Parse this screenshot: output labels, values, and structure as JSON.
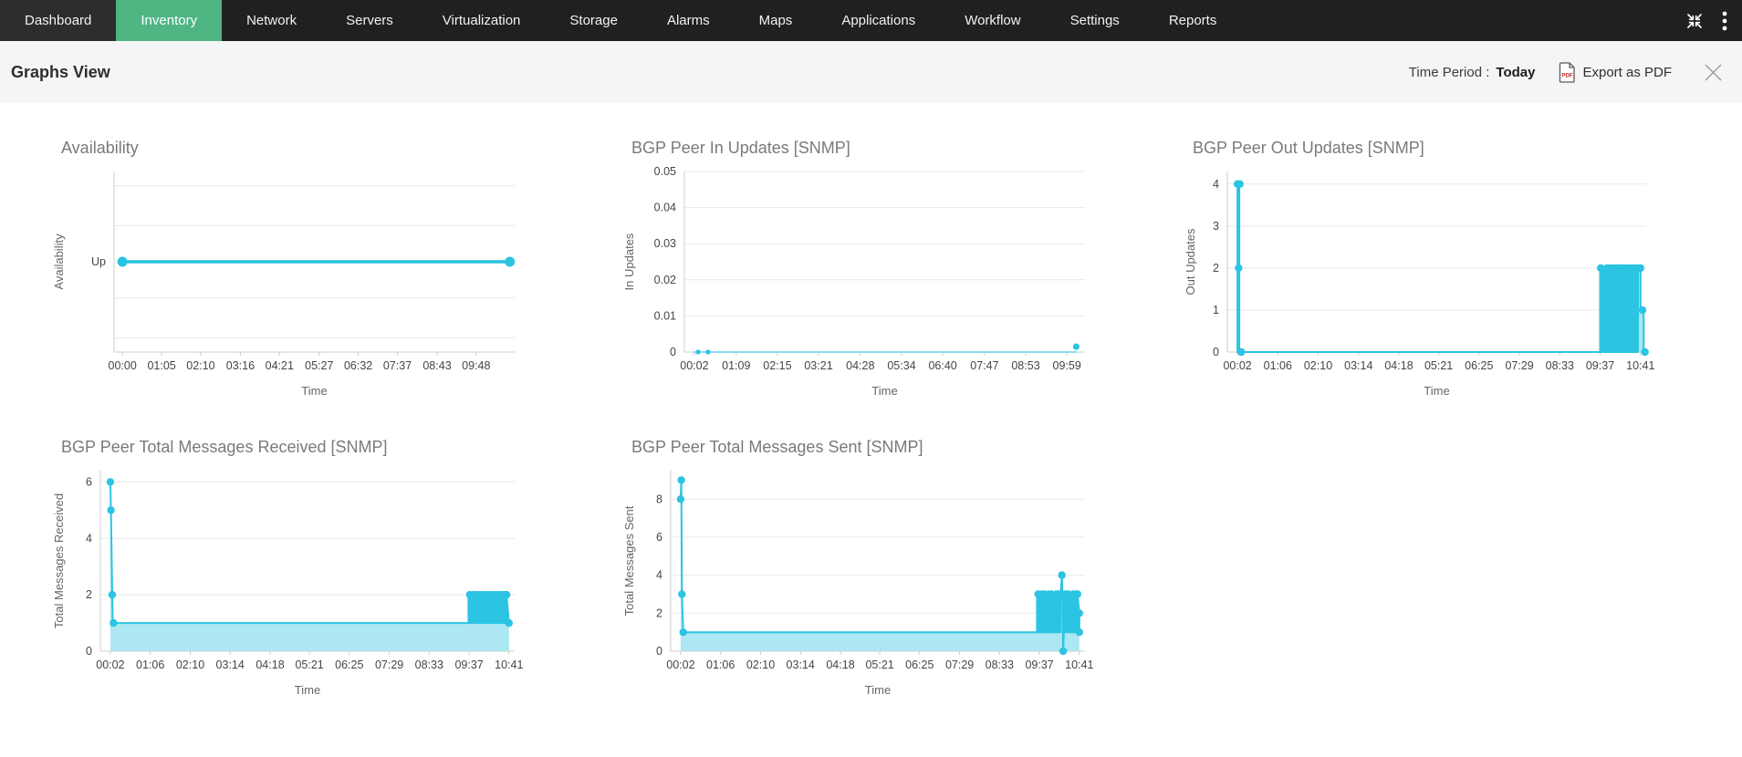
{
  "nav": {
    "items": [
      {
        "label": "Dashboard",
        "active": false
      },
      {
        "label": "Inventory",
        "active": true
      },
      {
        "label": "Network",
        "active": false
      },
      {
        "label": "Servers",
        "active": false
      },
      {
        "label": "Virtualization",
        "active": false
      },
      {
        "label": "Storage",
        "active": false
      },
      {
        "label": "Alarms",
        "active": false
      },
      {
        "label": "Maps",
        "active": false
      },
      {
        "label": "Applications",
        "active": false
      },
      {
        "label": "Workflow",
        "active": false
      },
      {
        "label": "Settings",
        "active": false
      },
      {
        "label": "Reports",
        "active": false
      }
    ],
    "icons": [
      {
        "name": "collapse"
      },
      {
        "name": "kebab-menu"
      }
    ]
  },
  "header": {
    "title": "Graphs View",
    "time_period_label": "Time Period :",
    "time_period_value": "Today",
    "export_label": "Export as PDF"
  },
  "colors": {
    "nav_bg": "#202020",
    "accent_green": "#4fb583",
    "header_bg": "#f4f5f7",
    "line_cyan": "#2bc4e2",
    "fill_cyan": "#ace7f3",
    "grid": "#e9e9e9"
  },
  "chart_data": [
    {
      "id": "availability",
      "type": "line",
      "title": "Availability",
      "xlabel": "Time",
      "ylabel": "Availability",
      "margin_left": 70,
      "xlim": [
        -14,
        652
      ],
      "ylim": [
        0,
        1
      ],
      "xticks": [
        {
          "v": 0,
          "label": "00:00"
        },
        {
          "v": 65,
          "label": "01:05"
        },
        {
          "v": 130,
          "label": "02:10"
        },
        {
          "v": 196,
          "label": "03:16"
        },
        {
          "v": 261,
          "label": "04:21"
        },
        {
          "v": 327,
          "label": "05:27"
        },
        {
          "v": 392,
          "label": "06:32"
        },
        {
          "v": 457,
          "label": "07:37"
        },
        {
          "v": 523,
          "label": "08:43"
        },
        {
          "v": 588,
          "label": "09:48"
        }
      ],
      "yticks": [
        {
          "v": 0.5,
          "label": "Up"
        }
      ],
      "gridlines": [
        0.08,
        0.3,
        0.7,
        0.92
      ],
      "line_color": "#29c4e0",
      "line_width": 3.5,
      "marker_r": 5.5,
      "fill": false,
      "segments": [
        {
          "type": "line",
          "points": [
            [
              0,
              0.5
            ],
            [
              644,
              0.5
            ]
          ]
        }
      ],
      "markers": [
        [
          0,
          0.5
        ],
        [
          644,
          0.5
        ]
      ]
    },
    {
      "id": "bgp-peer-in-updates",
      "type": "line",
      "title": "BGP Peer In Updates [SNMP]",
      "xlabel": "Time",
      "ylabel": "In Updates",
      "margin_left": 70,
      "xlim": [
        -14,
        628
      ],
      "ylim": [
        0,
        0.05
      ],
      "xticks": [
        {
          "v": 2,
          "label": "00:02"
        },
        {
          "v": 69,
          "label": "01:09"
        },
        {
          "v": 135,
          "label": "02:15"
        },
        {
          "v": 201,
          "label": "03:21"
        },
        {
          "v": 268,
          "label": "04:28"
        },
        {
          "v": 334,
          "label": "05:34"
        },
        {
          "v": 400,
          "label": "06:40"
        },
        {
          "v": 467,
          "label": "07:47"
        },
        {
          "v": 533,
          "label": "08:53"
        },
        {
          "v": 599,
          "label": "09:59"
        }
      ],
      "yticks": [
        {
          "v": 0,
          "label": "0"
        },
        {
          "v": 0.01,
          "label": "0.01"
        },
        {
          "v": 0.02,
          "label": "0.02"
        },
        {
          "v": 0.03,
          "label": "0.03"
        },
        {
          "v": 0.04,
          "label": "0.04"
        },
        {
          "v": 0.05,
          "label": "0.05"
        }
      ],
      "gridlines": [
        0.01,
        0.02,
        0.03,
        0.04,
        0.05
      ],
      "line_color": "#85dff0",
      "marker_color": "#2bc4e2",
      "line_width": 2,
      "marker_r": 2.6,
      "fill": false,
      "segments": [
        {
          "type": "line",
          "points": [
            [
              2,
              0
            ],
            [
              614,
              0
            ]
          ]
        }
      ],
      "markers": [
        [
          8,
          0
        ],
        [
          24,
          0
        ],
        [
          614,
          0.0015,
          3.6
        ]
      ]
    },
    {
      "id": "bgp-peer-out-updates",
      "type": "line",
      "title": "BGP Peer Out Updates [SNMP]",
      "xlabel": "Time",
      "ylabel": "Out Updates",
      "margin_left": 50,
      "xlim": [
        -14,
        650
      ],
      "ylim": [
        0,
        4.3
      ],
      "xticks": [
        {
          "v": 2,
          "label": "00:02"
        },
        {
          "v": 66,
          "label": "01:06"
        },
        {
          "v": 130,
          "label": "02:10"
        },
        {
          "v": 194,
          "label": "03:14"
        },
        {
          "v": 258,
          "label": "04:18"
        },
        {
          "v": 321,
          "label": "05:21"
        },
        {
          "v": 385,
          "label": "06:25"
        },
        {
          "v": 449,
          "label": "07:29"
        },
        {
          "v": 513,
          "label": "08:33"
        },
        {
          "v": 577,
          "label": "09:37"
        },
        {
          "v": 641,
          "label": "10:41"
        }
      ],
      "yticks": [
        {
          "v": 0,
          "label": "0"
        },
        {
          "v": 1,
          "label": "1"
        },
        {
          "v": 2,
          "label": "2"
        },
        {
          "v": 3,
          "label": "3"
        },
        {
          "v": 4,
          "label": "4"
        }
      ],
      "gridlines": [
        1,
        2,
        3,
        4
      ],
      "line_color": "#2bc4e2",
      "line_width": 2,
      "marker_r": 4.2,
      "fill": true,
      "fill_color": "#ace7f3",
      "segments": [
        {
          "type": "line",
          "points": [
            [
              2,
              0
            ],
            [
              2,
              4
            ],
            [
              5,
              4
            ],
            [
              5,
              0
            ],
            [
              577,
              0
            ]
          ]
        },
        {
          "type": "burst",
          "x0": 577,
          "x1": 637,
          "low": 0,
          "high": 2,
          "n": 22
        },
        {
          "type": "line",
          "points": [
            [
              637,
              2
            ],
            [
              641,
              2
            ],
            [
              641,
              1
            ],
            [
              646,
              1
            ],
            [
              646,
              0
            ],
            [
              648,
              0
            ]
          ]
        }
      ],
      "markers": [
        [
          2,
          4
        ],
        [
          6,
          4
        ],
        [
          4,
          2
        ],
        [
          8,
          0
        ],
        [
          578,
          2
        ],
        [
          582,
          1
        ],
        [
          588,
          2
        ],
        [
          593,
          2
        ],
        [
          598,
          2
        ],
        [
          603,
          2
        ],
        [
          608,
          2
        ],
        [
          613,
          2
        ],
        [
          618,
          2
        ],
        [
          623,
          2
        ],
        [
          628,
          2
        ],
        [
          633,
          2
        ],
        [
          637,
          2
        ],
        [
          641,
          2
        ],
        [
          644,
          1
        ],
        [
          648,
          0
        ]
      ]
    },
    {
      "id": "bgp-peer-total-messages-received",
      "type": "line",
      "title": "BGP Peer Total Messages Received [SNMP]",
      "xlabel": "Time",
      "ylabel": "Total Messages Received",
      "margin_left": 55,
      "xlim": [
        -14,
        650
      ],
      "ylim": [
        0,
        6.4
      ],
      "xticks": [
        {
          "v": 2,
          "label": "00:02"
        },
        {
          "v": 66,
          "label": "01:06"
        },
        {
          "v": 130,
          "label": "02:10"
        },
        {
          "v": 194,
          "label": "03:14"
        },
        {
          "v": 258,
          "label": "04:18"
        },
        {
          "v": 321,
          "label": "05:21"
        },
        {
          "v": 385,
          "label": "06:25"
        },
        {
          "v": 449,
          "label": "07:29"
        },
        {
          "v": 513,
          "label": "08:33"
        },
        {
          "v": 577,
          "label": "09:37"
        },
        {
          "v": 641,
          "label": "10:41"
        }
      ],
      "yticks": [
        {
          "v": 0,
          "label": "0"
        },
        {
          "v": 2,
          "label": "2"
        },
        {
          "v": 4,
          "label": "4"
        },
        {
          "v": 6,
          "label": "6"
        }
      ],
      "gridlines": [
        2,
        4,
        6
      ],
      "line_color": "#2bc4e2",
      "line_width": 2,
      "marker_r": 4.2,
      "fill": true,
      "fill_color": "#ace7f3",
      "segments": [
        {
          "type": "line",
          "points": [
            [
              2,
              6
            ],
            [
              3,
              5
            ],
            [
              5,
              2
            ],
            [
              6,
              1
            ],
            [
              576,
              1
            ]
          ]
        },
        {
          "type": "burst",
          "x0": 576,
          "x1": 637,
          "low": 1,
          "high": 2,
          "n": 20
        },
        {
          "type": "line",
          "points": [
            [
              637,
              2
            ],
            [
              641,
              1
            ]
          ]
        }
      ],
      "markers": [
        [
          2,
          6
        ],
        [
          3,
          5
        ],
        [
          5,
          2
        ],
        [
          7,
          1
        ],
        [
          578,
          2
        ],
        [
          584,
          2
        ],
        [
          590,
          2
        ],
        [
          596,
          2
        ],
        [
          602,
          2
        ],
        [
          608,
          2
        ],
        [
          614,
          2
        ],
        [
          620,
          2
        ],
        [
          626,
          2
        ],
        [
          632,
          2
        ],
        [
          637,
          2
        ],
        [
          641,
          1
        ]
      ]
    },
    {
      "id": "bgp-peer-total-messages-sent",
      "type": "line",
      "title": "BGP Peer Total Messages Sent [SNMP]",
      "xlabel": "Time",
      "ylabel": "Total Messages Sent",
      "margin_left": 55,
      "xlim": [
        -14,
        650
      ],
      "ylim": [
        0,
        9.5
      ],
      "xticks": [
        {
          "v": 2,
          "label": "00:02"
        },
        {
          "v": 66,
          "label": "01:06"
        },
        {
          "v": 130,
          "label": "02:10"
        },
        {
          "v": 194,
          "label": "03:14"
        },
        {
          "v": 258,
          "label": "04:18"
        },
        {
          "v": 321,
          "label": "05:21"
        },
        {
          "v": 385,
          "label": "06:25"
        },
        {
          "v": 449,
          "label": "07:29"
        },
        {
          "v": 513,
          "label": "08:33"
        },
        {
          "v": 577,
          "label": "09:37"
        },
        {
          "v": 641,
          "label": "10:41"
        }
      ],
      "yticks": [
        {
          "v": 0,
          "label": "0"
        },
        {
          "v": 2,
          "label": "2"
        },
        {
          "v": 4,
          "label": "4"
        },
        {
          "v": 6,
          "label": "6"
        },
        {
          "v": 8,
          "label": "8"
        }
      ],
      "gridlines": [
        2,
        4,
        6,
        8
      ],
      "line_color": "#2bc4e2",
      "line_width": 2,
      "marker_r": 4.2,
      "fill": true,
      "fill_color": "#ace7f3",
      "segments": [
        {
          "type": "line",
          "points": [
            [
              2,
              8
            ],
            [
              3,
              9
            ],
            [
              4,
              3
            ],
            [
              6,
              1
            ],
            [
              573,
              1
            ]
          ]
        },
        {
          "type": "burst",
          "x0": 573,
          "x1": 611,
          "low": 1,
          "high": 3,
          "n": 14
        },
        {
          "type": "line",
          "points": [
            [
              611,
              3
            ],
            [
              613,
              4
            ],
            [
              614,
              3
            ],
            [
              615,
              0
            ],
            [
              616,
              1
            ]
          ]
        },
        {
          "type": "burst",
          "x0": 616,
          "x1": 638,
          "low": 1,
          "high": 3,
          "n": 8
        },
        {
          "type": "line",
          "points": [
            [
              638,
              3
            ],
            [
              641,
              2
            ],
            [
              641,
              1
            ]
          ]
        }
      ],
      "markers": [
        [
          2,
          8
        ],
        [
          3,
          9
        ],
        [
          4,
          3
        ],
        [
          6,
          1
        ],
        [
          575,
          3
        ],
        [
          578,
          2
        ],
        [
          581,
          3
        ],
        [
          585,
          3
        ],
        [
          589,
          2
        ],
        [
          592,
          3
        ],
        [
          596,
          3
        ],
        [
          600,
          2
        ],
        [
          604,
          3
        ],
        [
          608,
          3
        ],
        [
          613,
          4
        ],
        [
          615,
          0
        ],
        [
          619,
          3
        ],
        [
          623,
          3
        ],
        [
          627,
          2
        ],
        [
          631,
          3
        ],
        [
          635,
          3
        ],
        [
          638,
          3
        ],
        [
          641,
          2
        ],
        [
          641,
          1
        ]
      ]
    }
  ]
}
